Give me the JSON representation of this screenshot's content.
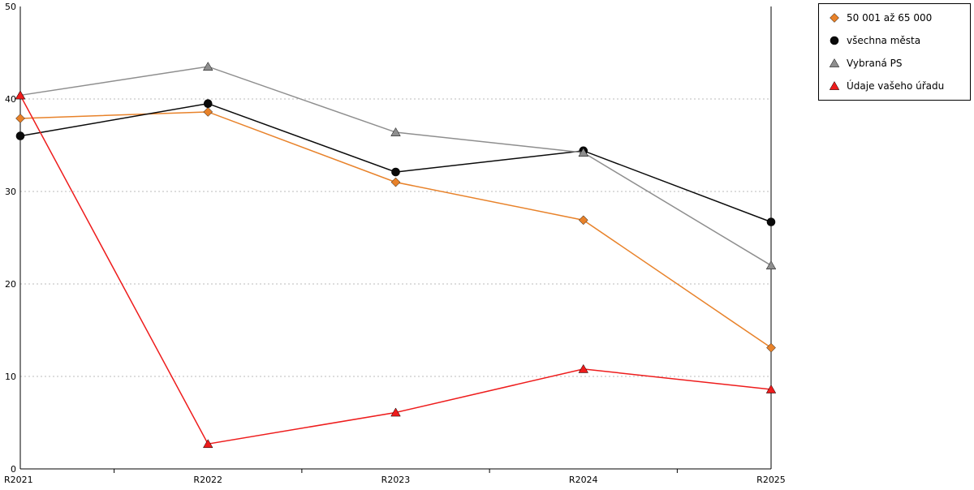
{
  "chart_data": {
    "type": "line",
    "categories": [
      "R2021",
      "R2022",
      "R2023",
      "R2024",
      "R2025"
    ],
    "series": [
      {
        "name": "50 001 až 65 000",
        "color": "#E8822A",
        "marker": "diamond",
        "values": [
          37.9,
          38.6,
          31.0,
          26.9,
          13.1
        ]
      },
      {
        "name": "všechna města",
        "color": "#0A0A0A",
        "marker": "circle",
        "values": [
          36.0,
          39.5,
          32.1,
          34.4,
          26.7
        ]
      },
      {
        "name": "Vybraná PS",
        "color": "#8E8E8E",
        "marker": "triangle",
        "values": [
          40.4,
          43.5,
          36.4,
          34.2,
          22.0
        ]
      },
      {
        "name": "Údaje vašeho úřadu",
        "color": "#EE1C1C",
        "marker": "triangle",
        "values": [
          40.4,
          2.7,
          6.1,
          10.8,
          8.6
        ]
      }
    ],
    "title": "",
    "xlabel": "",
    "ylabel": "",
    "ylim": [
      0,
      50
    ],
    "yticks": [
      0,
      10,
      20,
      30,
      40,
      50
    ],
    "grid": "horizontal-dotted",
    "legend_position": "top-right",
    "axis_color": "#000000",
    "grid_color": "#bbbbbb"
  }
}
